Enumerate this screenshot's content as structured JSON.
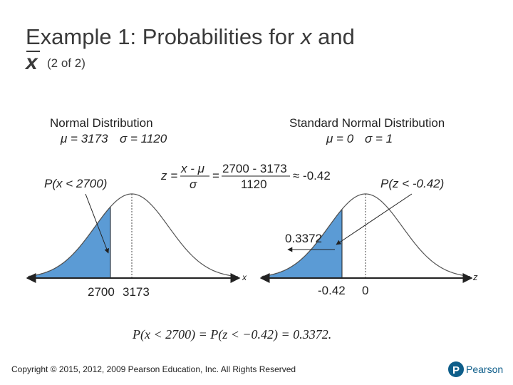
{
  "header": {
    "title_prefix": "Example 1: Probabilities for",
    "title_var": "x",
    "title_suffix": "and",
    "title_bar_var": "x",
    "subtitle": "(2 of 2)"
  },
  "left": {
    "heading": "Normal Distribution",
    "mean": "μ = 3173",
    "sd": "σ = 1120",
    "prob_label": "P(x < 2700)",
    "axis_var": "x",
    "ticks": [
      "2700",
      "3173"
    ]
  },
  "formula": {
    "lhs": "z =",
    "num1": "x - μ",
    "den1": "σ",
    "eq": "=",
    "num2": "2700 - 3173",
    "den2": "1120",
    "result": "≈ -0.42"
  },
  "right": {
    "heading": "Standard Normal Distribution",
    "mean": "μ = 0",
    "sd": "σ = 1",
    "prob_label": "P(z < -0.42)",
    "area_label": "0.3372",
    "axis_var": "z",
    "ticks": [
      "-0.42",
      "0"
    ]
  },
  "equation": "P(x < 2700) = P(z < −0.42) = 0.3372.",
  "footer": {
    "copyright": "Copyright © 2015, 2012, 2009 Pearson Education, Inc. All Rights Reserved",
    "logo": "Pearson"
  }
}
